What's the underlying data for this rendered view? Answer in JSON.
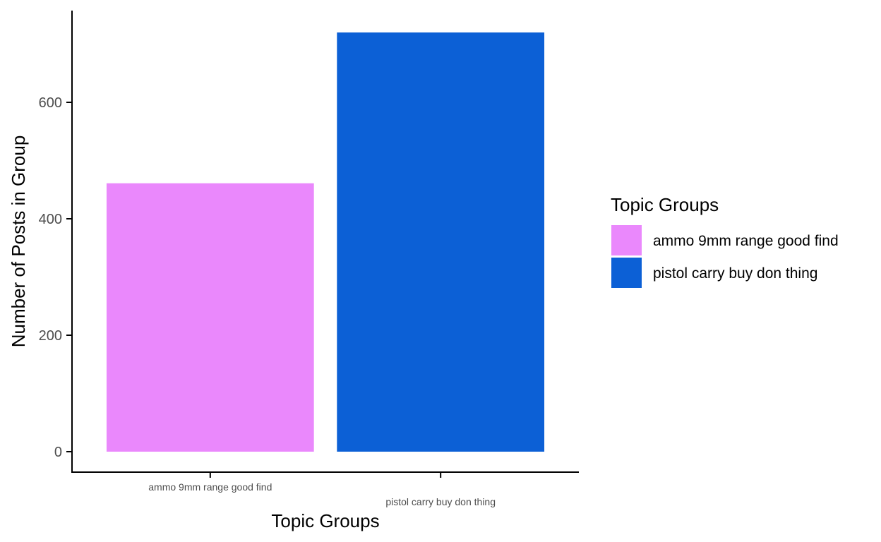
{
  "chart_data": {
    "type": "bar",
    "categories": [
      "ammo 9mm range good find",
      "pistol carry buy don thing"
    ],
    "values": [
      461,
      720
    ],
    "colors": [
      "#EA88FC",
      "#0C60D6"
    ],
    "xlabel": "Topic Groups",
    "ylabel": "Number of Posts in Group",
    "ylim": [
      0,
      757
    ],
    "yticks": [
      0,
      200,
      400,
      600
    ],
    "grid": false,
    "legend": {
      "title": "Topic Groups",
      "position": "right",
      "entries": [
        "ammo 9mm range good find",
        "pistol carry buy don thing"
      ]
    }
  }
}
